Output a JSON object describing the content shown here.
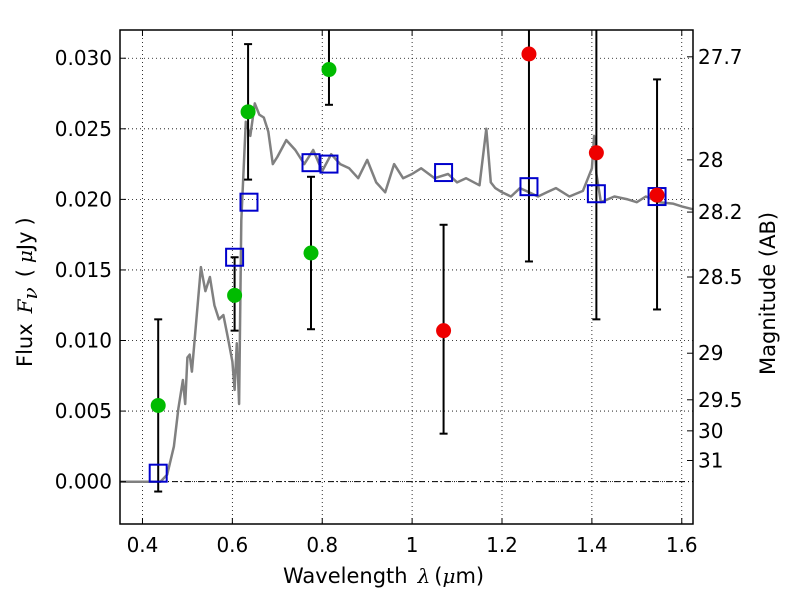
{
  "chart_data": {
    "type": "scatter",
    "xlabel": {
      "prefix": "Wavelength",
      "symbol": "λ",
      "unit_open": "(",
      "unit_mu": "μ",
      "unit_rest": "m)"
    },
    "ylabel": {
      "prefix": "Flux",
      "symbol": "F",
      "sub": "ν",
      "unit_open": "(",
      "unit_mu": "μ",
      "unit_rest": "Jy",
      "unit_close": ")"
    },
    "y2label": "Magnitude (AB)",
    "xlim": [
      0.35,
      1.625
    ],
    "ylim": [
      -0.003,
      0.032
    ],
    "grid": true,
    "xticks": [
      {
        "v": 0.4,
        "t": "0.4"
      },
      {
        "v": 0.6,
        "t": "0.6"
      },
      {
        "v": 0.8,
        "t": "0.8"
      },
      {
        "v": 1.0,
        "t": "1"
      },
      {
        "v": 1.2,
        "t": "1.2"
      },
      {
        "v": 1.4,
        "t": "1.4"
      },
      {
        "v": 1.6,
        "t": "1.6"
      }
    ],
    "yticks": [
      {
        "v": 0.0,
        "t": "0.000"
      },
      {
        "v": 0.005,
        "t": "0.005"
      },
      {
        "v": 0.01,
        "t": "0.010"
      },
      {
        "v": 0.015,
        "t": "0.015"
      },
      {
        "v": 0.02,
        "t": "0.020"
      },
      {
        "v": 0.025,
        "t": "0.025"
      },
      {
        "v": 0.03,
        "t": "0.030"
      }
    ],
    "y2ticks": [
      {
        "v": 0.0301,
        "t": "27.7"
      },
      {
        "v": 0.0228,
        "t": "28"
      },
      {
        "v": 0.0191,
        "t": "28.2"
      },
      {
        "v": 0.0145,
        "t": "28.5"
      },
      {
        "v": 0.0091,
        "t": "29"
      },
      {
        "v": 0.0058,
        "t": "29.5"
      },
      {
        "v": 0.0036,
        "t": "30"
      },
      {
        "v": 0.0015,
        "t": "31"
      }
    ],
    "colors": {
      "model": "#808080",
      "green": "#00bb00",
      "red": "#ee0000",
      "box": "#0000cc",
      "errorbar": "#000000"
    },
    "model_spectrum": {
      "x": [
        0.35,
        0.44,
        0.455,
        0.47,
        0.48,
        0.49,
        0.495,
        0.5,
        0.505,
        0.51,
        0.52,
        0.53,
        0.54,
        0.55,
        0.56,
        0.57,
        0.58,
        0.59,
        0.6,
        0.605,
        0.61,
        0.615,
        0.62,
        0.63,
        0.64,
        0.65,
        0.66,
        0.67,
        0.68,
        0.69,
        0.7,
        0.72,
        0.74,
        0.76,
        0.78,
        0.8,
        0.82,
        0.84,
        0.86,
        0.88,
        0.9,
        0.92,
        0.94,
        0.96,
        0.98,
        1.0,
        1.02,
        1.05,
        1.08,
        1.1,
        1.12,
        1.15,
        1.165,
        1.175,
        1.185,
        1.2,
        1.22,
        1.24,
        1.26,
        1.28,
        1.3,
        1.32,
        1.35,
        1.38,
        1.4,
        1.405,
        1.41,
        1.42,
        1.45,
        1.48,
        1.5,
        1.52,
        1.55,
        1.58,
        1.6,
        1.625
      ],
      "y": [
        0.0,
        0.0,
        0.0005,
        0.0025,
        0.0052,
        0.0072,
        0.0055,
        0.0088,
        0.009,
        0.0078,
        0.0115,
        0.0152,
        0.0135,
        0.0145,
        0.0125,
        0.0115,
        0.0118,
        0.0102,
        0.0085,
        0.0065,
        0.0098,
        0.0055,
        0.0185,
        0.0255,
        0.0245,
        0.0268,
        0.026,
        0.0258,
        0.0248,
        0.0225,
        0.023,
        0.0242,
        0.0235,
        0.0225,
        0.0235,
        0.022,
        0.0232,
        0.0225,
        0.0222,
        0.0215,
        0.0228,
        0.0212,
        0.0205,
        0.0225,
        0.0215,
        0.0218,
        0.0222,
        0.0215,
        0.0218,
        0.0212,
        0.0215,
        0.021,
        0.025,
        0.0212,
        0.0208,
        0.0205,
        0.0202,
        0.0208,
        0.0205,
        0.0202,
        0.0205,
        0.0208,
        0.0202,
        0.0206,
        0.0222,
        0.0245,
        0.0218,
        0.0198,
        0.0202,
        0.02,
        0.0198,
        0.0202,
        0.0198,
        0.0197,
        0.0195,
        0.0193
      ]
    },
    "model_photometry": [
      {
        "x": 0.435,
        "y": 0.0006
      },
      {
        "x": 0.605,
        "y": 0.0159
      },
      {
        "x": 0.637,
        "y": 0.0198
      },
      {
        "x": 0.775,
        "y": 0.0226
      },
      {
        "x": 0.815,
        "y": 0.0225
      },
      {
        "x": 1.07,
        "y": 0.0219
      },
      {
        "x": 1.26,
        "y": 0.0209
      },
      {
        "x": 1.41,
        "y": 0.0204
      },
      {
        "x": 1.545,
        "y": 0.0202
      }
    ],
    "observed_green": [
      {
        "x": 0.435,
        "y": 0.0054,
        "lo": -0.0007,
        "hi": 0.0115
      },
      {
        "x": 0.605,
        "y": 0.0132,
        "lo": 0.0107,
        "hi": 0.0159
      },
      {
        "x": 0.635,
        "y": 0.0262,
        "lo": 0.0214,
        "hi": 0.031
      },
      {
        "x": 0.775,
        "y": 0.0162,
        "lo": 0.0108,
        "hi": 0.0216
      },
      {
        "x": 0.815,
        "y": 0.0292,
        "lo": 0.0267,
        "hi": 0.032
      }
    ],
    "observed_red": [
      {
        "x": 1.07,
        "y": 0.0107,
        "lo": 0.0034,
        "hi": 0.0182
      },
      {
        "x": 1.26,
        "y": 0.0303,
        "lo": 0.0156,
        "hi": 0.032
      },
      {
        "x": 1.41,
        "y": 0.0233,
        "lo": 0.0115,
        "hi": 0.032
      },
      {
        "x": 1.545,
        "y": 0.0203,
        "lo": 0.0122,
        "hi": 0.0285
      }
    ]
  }
}
